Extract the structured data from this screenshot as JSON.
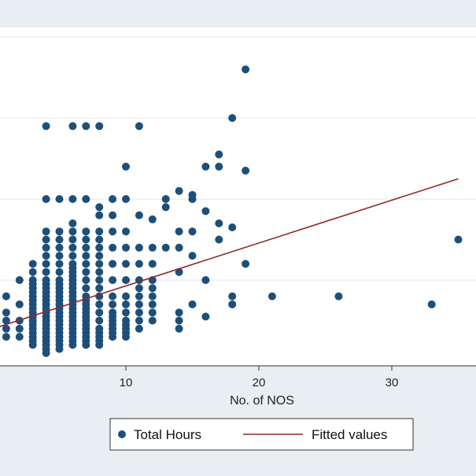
{
  "chart_data": {
    "type": "scatter",
    "title": "",
    "xlabel": "No. of NOS",
    "ylabel": "",
    "xlim": [
      0,
      36
    ],
    "ylim": [
      0,
      40
    ],
    "x_ticks": [
      10,
      20,
      30
    ],
    "y_ticks": [
      10,
      20,
      30,
      40
    ],
    "grid": true,
    "legend": "bottom",
    "colors": {
      "background": "#e8eef2",
      "plot_background": "#ffffff",
      "grid": "#e6ecef",
      "points": "#1d4f79",
      "fit_line": "#8e2a2a"
    },
    "series": [
      {
        "name": "Total Hours",
        "kind": "points",
        "points": [
          [
            0,
            3
          ],
          [
            1,
            3
          ],
          [
            1,
            4
          ],
          [
            1,
            5
          ],
          [
            1,
            6
          ],
          [
            1,
            8
          ],
          [
            2,
            3
          ],
          [
            2,
            4
          ],
          [
            2,
            5
          ],
          [
            2,
            7
          ],
          [
            2,
            10
          ],
          [
            3,
            2
          ],
          [
            3,
            2.5
          ],
          [
            3,
            3
          ],
          [
            3,
            3.5
          ],
          [
            3,
            4
          ],
          [
            3,
            4.5
          ],
          [
            3,
            5
          ],
          [
            3,
            5.5
          ],
          [
            3,
            6
          ],
          [
            3,
            6.5
          ],
          [
            3,
            7
          ],
          [
            3,
            7.5
          ],
          [
            3,
            8
          ],
          [
            3,
            8.5
          ],
          [
            3,
            9
          ],
          [
            3,
            9.5
          ],
          [
            3,
            10
          ],
          [
            3,
            11
          ],
          [
            3,
            12
          ],
          [
            4,
            1
          ],
          [
            4,
            1.5
          ],
          [
            4,
            2
          ],
          [
            4,
            2.5
          ],
          [
            4,
            3
          ],
          [
            4,
            3.5
          ],
          [
            4,
            4
          ],
          [
            4,
            4.5
          ],
          [
            4,
            5
          ],
          [
            4,
            5.5
          ],
          [
            4,
            6
          ],
          [
            4,
            6.5
          ],
          [
            4,
            7
          ],
          [
            4,
            7.5
          ],
          [
            4,
            8
          ],
          [
            4,
            8.5
          ],
          [
            4,
            9
          ],
          [
            4,
            9.5
          ],
          [
            4,
            10
          ],
          [
            4,
            11
          ],
          [
            4,
            12
          ],
          [
            4,
            13
          ],
          [
            4,
            14
          ],
          [
            4,
            15
          ],
          [
            4,
            16
          ],
          [
            4,
            20
          ],
          [
            4,
            29
          ],
          [
            5,
            1.5
          ],
          [
            5,
            2
          ],
          [
            5,
            2.5
          ],
          [
            5,
            3
          ],
          [
            5,
            3.5
          ],
          [
            5,
            4
          ],
          [
            5,
            4.5
          ],
          [
            5,
            5
          ],
          [
            5,
            5.5
          ],
          [
            5,
            6
          ],
          [
            5,
            6.5
          ],
          [
            5,
            7
          ],
          [
            5,
            7.5
          ],
          [
            5,
            8
          ],
          [
            5,
            8.5
          ],
          [
            5,
            9
          ],
          [
            5,
            9.5
          ],
          [
            5,
            10
          ],
          [
            5,
            11
          ],
          [
            5,
            12
          ],
          [
            5,
            13
          ],
          [
            5,
            14
          ],
          [
            5,
            15
          ],
          [
            5,
            16
          ],
          [
            5,
            20
          ],
          [
            6,
            2
          ],
          [
            6,
            2.5
          ],
          [
            6,
            3
          ],
          [
            6,
            3.5
          ],
          [
            6,
            4
          ],
          [
            6,
            4.5
          ],
          [
            6,
            5
          ],
          [
            6,
            5.5
          ],
          [
            6,
            6
          ],
          [
            6,
            6.5
          ],
          [
            6,
            7
          ],
          [
            6,
            7.5
          ],
          [
            6,
            8
          ],
          [
            6,
            8.5
          ],
          [
            6,
            9
          ],
          [
            6,
            9.5
          ],
          [
            6,
            10
          ],
          [
            6,
            10.5
          ],
          [
            6,
            11
          ],
          [
            6,
            11.5
          ],
          [
            6,
            12
          ],
          [
            6,
            13
          ],
          [
            6,
            14
          ],
          [
            6,
            15
          ],
          [
            6,
            16
          ],
          [
            6,
            17
          ],
          [
            6,
            20
          ],
          [
            6,
            29
          ],
          [
            7,
            2
          ],
          [
            7,
            2.5
          ],
          [
            7,
            3
          ],
          [
            7,
            3.5
          ],
          [
            7,
            4
          ],
          [
            7,
            4.5
          ],
          [
            7,
            5
          ],
          [
            7,
            5.5
          ],
          [
            7,
            6
          ],
          [
            7,
            6.5
          ],
          [
            7,
            7
          ],
          [
            7,
            7.5
          ],
          [
            7,
            8
          ],
          [
            7,
            9
          ],
          [
            7,
            10
          ],
          [
            7,
            11
          ],
          [
            7,
            12
          ],
          [
            7,
            13
          ],
          [
            7,
            14
          ],
          [
            7,
            15
          ],
          [
            7,
            16
          ],
          [
            7,
            20
          ],
          [
            7,
            29
          ],
          [
            8,
            2
          ],
          [
            8,
            2.5
          ],
          [
            8,
            3
          ],
          [
            8,
            3.5
          ],
          [
            8,
            4
          ],
          [
            8,
            5
          ],
          [
            8,
            6
          ],
          [
            8,
            7
          ],
          [
            8,
            8
          ],
          [
            8,
            9
          ],
          [
            8,
            10
          ],
          [
            8,
            11
          ],
          [
            8,
            12
          ],
          [
            8,
            13
          ],
          [
            8,
            14
          ],
          [
            8,
            15
          ],
          [
            8,
            16
          ],
          [
            8,
            18
          ],
          [
            8,
            19
          ],
          [
            8,
            29
          ],
          [
            9,
            3
          ],
          [
            9,
            3.5
          ],
          [
            9,
            4
          ],
          [
            9,
            4.5
          ],
          [
            9,
            5
          ],
          [
            9,
            5.5
          ],
          [
            9,
            6
          ],
          [
            9,
            7
          ],
          [
            9,
            8
          ],
          [
            9,
            10
          ],
          [
            9,
            12
          ],
          [
            9,
            14
          ],
          [
            9,
            16
          ],
          [
            9,
            18
          ],
          [
            9,
            20
          ],
          [
            10,
            3
          ],
          [
            10,
            3.5
          ],
          [
            10,
            4
          ],
          [
            10,
            4.5
          ],
          [
            10,
            5
          ],
          [
            10,
            6
          ],
          [
            10,
            7
          ],
          [
            10,
            8
          ],
          [
            10,
            10
          ],
          [
            10,
            12
          ],
          [
            10,
            14
          ],
          [
            10,
            16
          ],
          [
            10,
            20
          ],
          [
            10,
            24
          ],
          [
            11,
            4
          ],
          [
            11,
            5
          ],
          [
            11,
            6
          ],
          [
            11,
            7
          ],
          [
            11,
            8
          ],
          [
            11,
            9
          ],
          [
            11,
            10
          ],
          [
            11,
            12
          ],
          [
            11,
            14
          ],
          [
            11,
            18
          ],
          [
            11,
            29
          ],
          [
            12,
            5
          ],
          [
            12,
            6
          ],
          [
            12,
            7
          ],
          [
            12,
            8
          ],
          [
            12,
            9
          ],
          [
            12,
            10
          ],
          [
            12,
            12
          ],
          [
            12,
            14
          ],
          [
            12,
            17.5
          ],
          [
            13,
            14
          ],
          [
            13,
            19
          ],
          [
            13,
            20
          ],
          [
            14,
            4
          ],
          [
            14,
            5
          ],
          [
            14,
            6
          ],
          [
            14,
            11
          ],
          [
            14,
            14
          ],
          [
            14,
            16
          ],
          [
            14,
            21
          ],
          [
            15,
            7
          ],
          [
            15,
            13
          ],
          [
            15,
            16
          ],
          [
            15,
            20
          ],
          [
            15,
            20.5
          ],
          [
            16,
            5.5
          ],
          [
            16,
            10
          ],
          [
            16,
            18.5
          ],
          [
            16,
            24
          ],
          [
            17,
            15
          ],
          [
            17,
            17
          ],
          [
            17,
            24
          ],
          [
            17,
            25.5
          ],
          [
            18,
            7
          ],
          [
            18,
            8
          ],
          [
            18,
            16.5
          ],
          [
            18,
            30
          ],
          [
            19,
            12
          ],
          [
            19,
            23.5
          ],
          [
            19,
            36
          ],
          [
            21,
            8
          ],
          [
            26,
            8
          ],
          [
            33,
            7
          ],
          [
            35,
            15
          ]
        ]
      },
      {
        "name": "Fitted values",
        "kind": "line",
        "points": [
          [
            0,
            4
          ],
          [
            35,
            22.5
          ]
        ]
      }
    ]
  }
}
